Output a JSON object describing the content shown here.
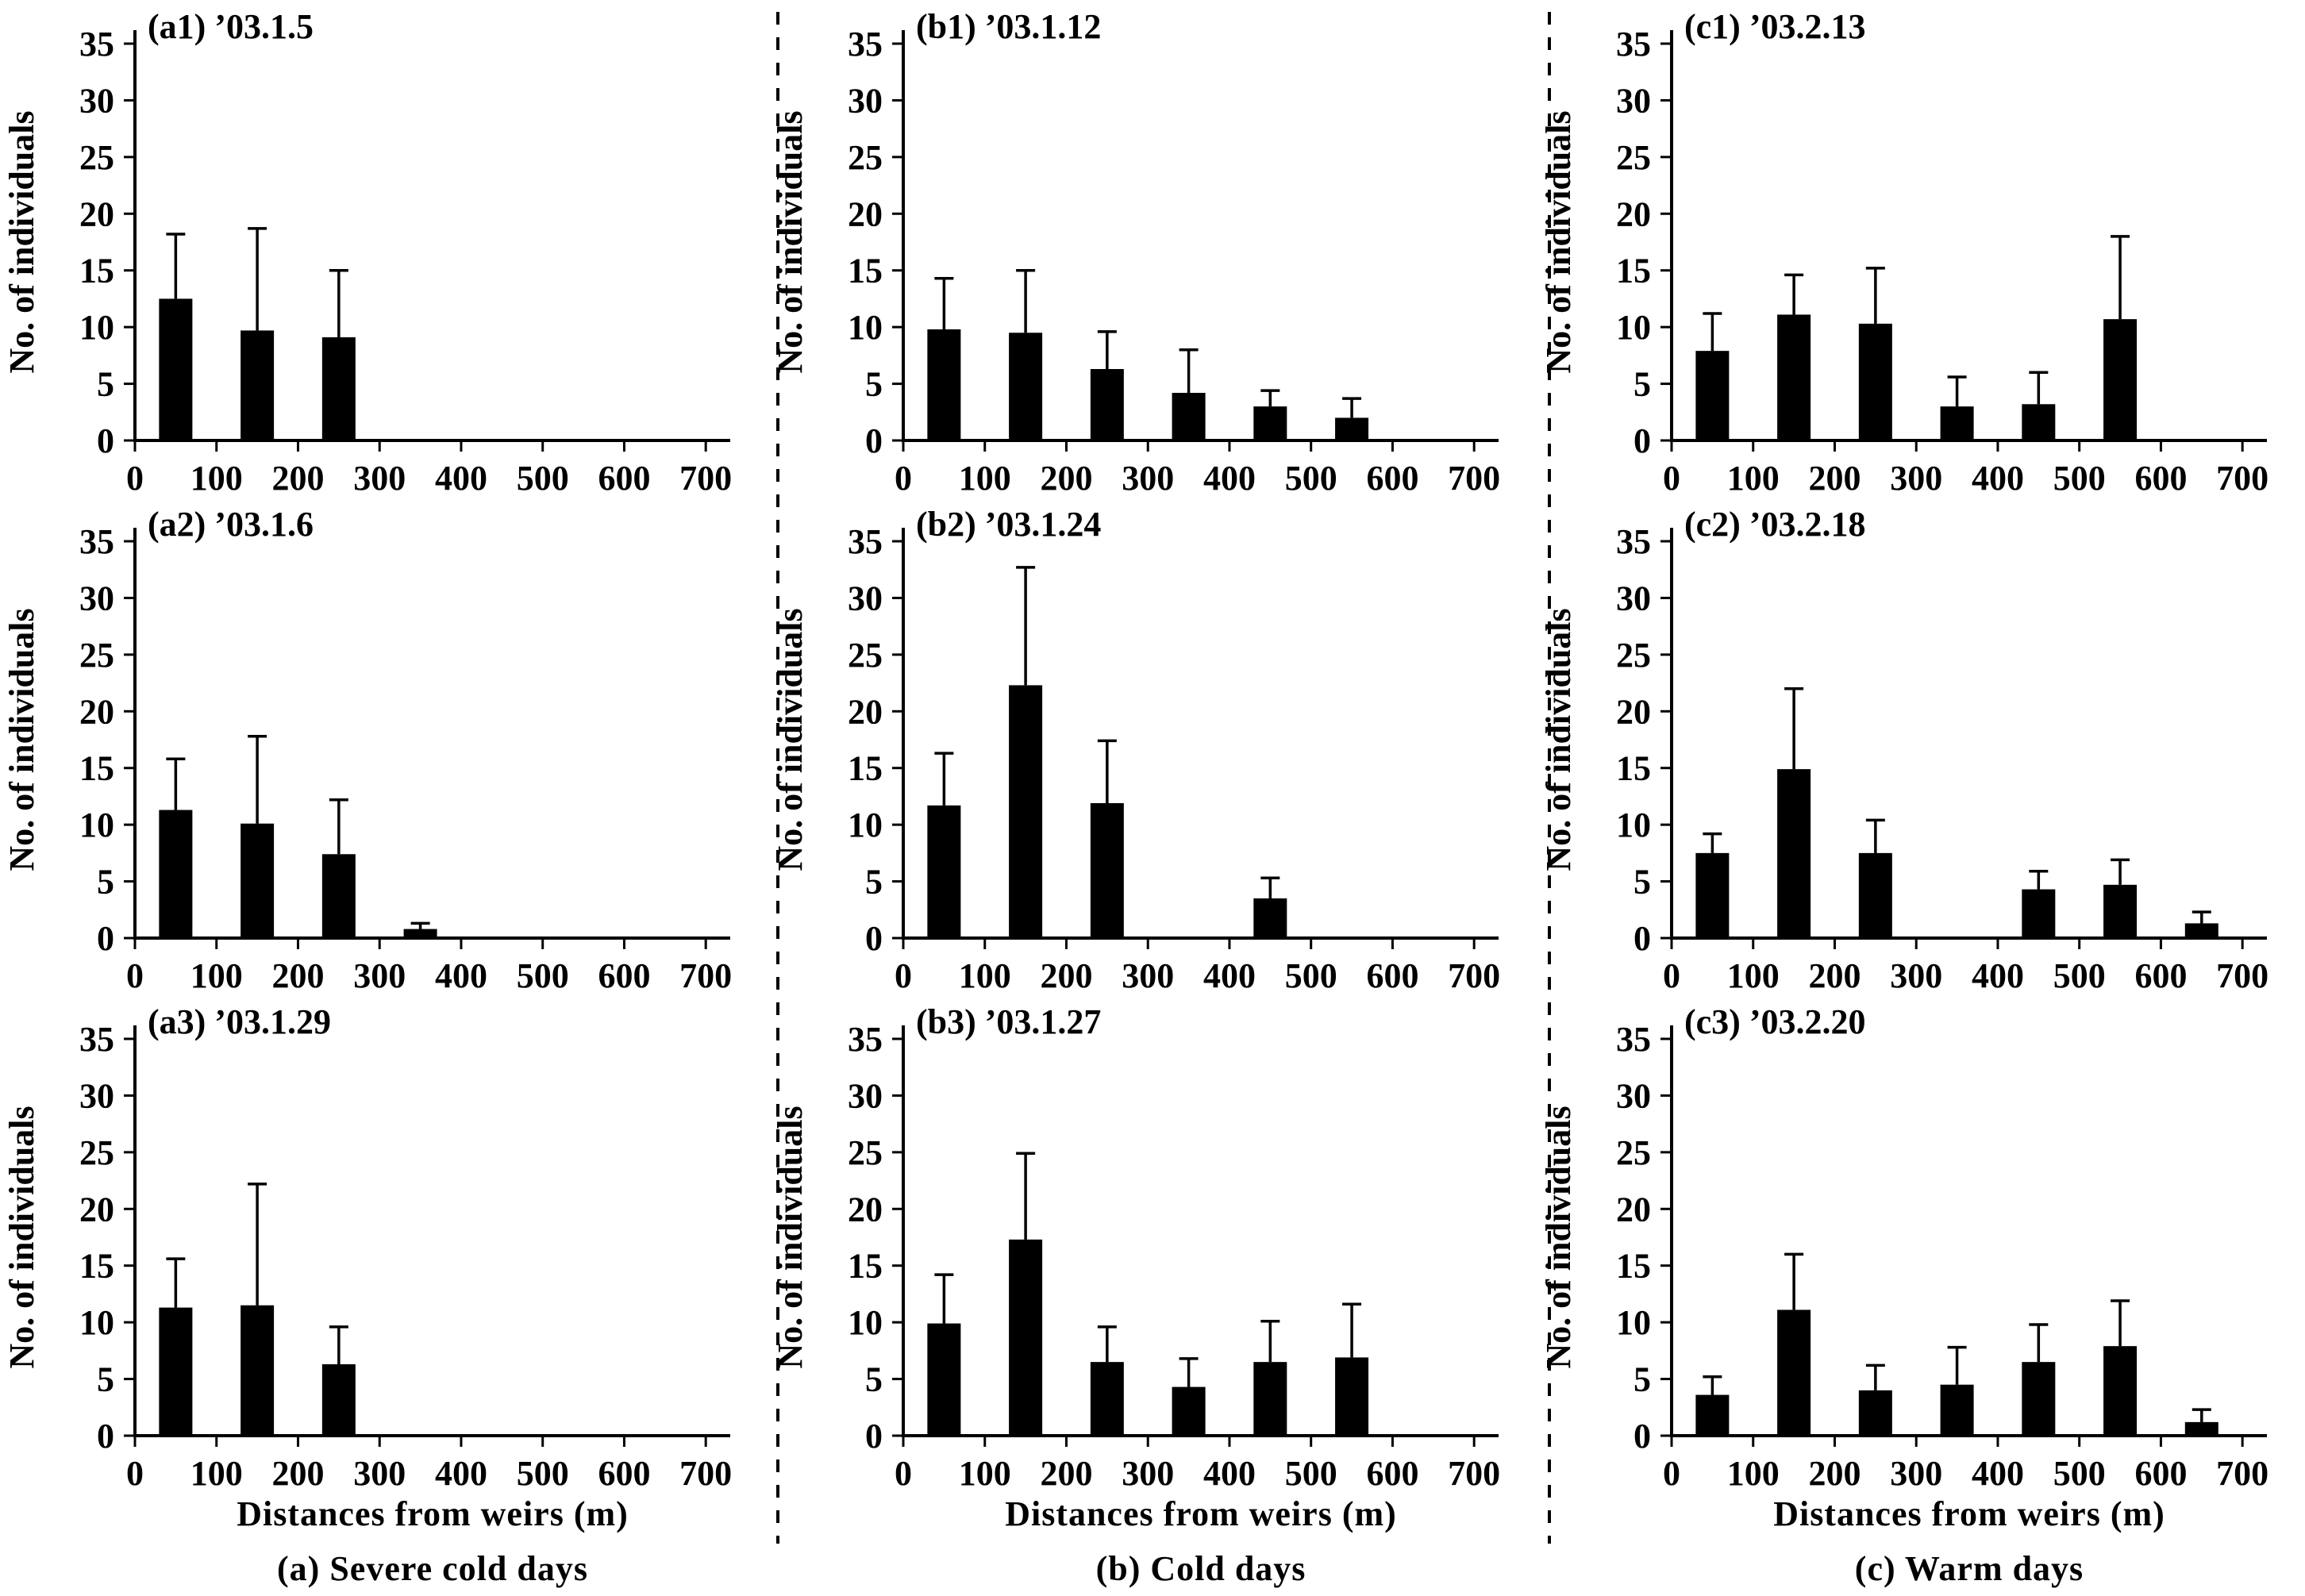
{
  "figure": {
    "ylabel": "No. of individuals",
    "xlabel": "Distances from weirs (m)",
    "bar_color": "#000000",
    "columns": [
      {
        "id": "a",
        "caption": "(a) Severe cold days"
      },
      {
        "id": "b",
        "caption": "(b) Cold days"
      },
      {
        "id": "c",
        "caption": "(c) Warm days"
      }
    ]
  },
  "chart_data": [
    {
      "panel": "a1",
      "column": "a",
      "row": 1,
      "type": "bar",
      "title": "(a1) ’03.1.5",
      "categories": [
        50,
        150,
        250,
        350,
        450,
        550,
        650
      ],
      "values": [
        12.5,
        9.7,
        9.1,
        0,
        0,
        0,
        0
      ],
      "errors_plus": [
        5.7,
        9.0,
        5.9,
        0,
        0,
        0,
        0
      ],
      "xticks": [
        0,
        100,
        200,
        300,
        400,
        500,
        600,
        700
      ],
      "yticks": [
        0,
        5,
        10,
        15,
        20,
        25,
        30,
        35
      ],
      "xlim": [
        0,
        730
      ],
      "ylim": [
        0,
        35
      ],
      "grid": false,
      "legend": "none",
      "ylabel": "No. of individuals",
      "xlabel": ""
    },
    {
      "panel": "a2",
      "column": "a",
      "row": 2,
      "type": "bar",
      "title": "(a2) ’03.1.6",
      "categories": [
        50,
        150,
        250,
        350,
        450,
        550,
        650
      ],
      "values": [
        11.3,
        10.1,
        7.4,
        0.8,
        0,
        0,
        0
      ],
      "errors_plus": [
        4.5,
        7.7,
        4.8,
        0.5,
        0,
        0,
        0
      ],
      "xticks": [
        0,
        100,
        200,
        300,
        400,
        500,
        600,
        700
      ],
      "yticks": [
        0,
        5,
        10,
        15,
        20,
        25,
        30,
        35
      ],
      "xlim": [
        0,
        730
      ],
      "ylim": [
        0,
        35
      ],
      "grid": false,
      "legend": "none",
      "ylabel": "No. of individuals",
      "xlabel": ""
    },
    {
      "panel": "a3",
      "column": "a",
      "row": 3,
      "type": "bar",
      "title": "(a3) ’03.1.29",
      "categories": [
        50,
        150,
        250,
        350,
        450,
        550,
        650
      ],
      "values": [
        11.3,
        11.5,
        6.3,
        0,
        0,
        0,
        0
      ],
      "errors_plus": [
        4.3,
        10.7,
        3.3,
        0,
        0,
        0,
        0
      ],
      "xticks": [
        0,
        100,
        200,
        300,
        400,
        500,
        600,
        700
      ],
      "yticks": [
        0,
        5,
        10,
        15,
        20,
        25,
        30,
        35
      ],
      "xlim": [
        0,
        730
      ],
      "ylim": [
        0,
        35
      ],
      "grid": false,
      "legend": "none",
      "ylabel": "No. of individuals",
      "xlabel": "Distances from weirs (m)"
    },
    {
      "panel": "b1",
      "column": "b",
      "row": 1,
      "type": "bar",
      "title": "(b1) ’03.1.12",
      "categories": [
        50,
        150,
        250,
        350,
        450,
        550,
        650
      ],
      "values": [
        9.8,
        9.5,
        6.3,
        4.2,
        3.0,
        2.0,
        0
      ],
      "errors_plus": [
        4.5,
        5.5,
        3.3,
        3.8,
        1.4,
        1.7,
        0
      ],
      "xticks": [
        0,
        100,
        200,
        300,
        400,
        500,
        600,
        700
      ],
      "yticks": [
        0,
        5,
        10,
        15,
        20,
        25,
        30,
        35
      ],
      "xlim": [
        0,
        730
      ],
      "ylim": [
        0,
        35
      ],
      "grid": false,
      "legend": "none",
      "ylabel": "No. of individuals",
      "xlabel": ""
    },
    {
      "panel": "b2",
      "column": "b",
      "row": 2,
      "type": "bar",
      "title": "(b2) ’03.1.24",
      "categories": [
        50,
        150,
        250,
        350,
        450,
        550,
        650
      ],
      "values": [
        11.7,
        22.3,
        11.9,
        0,
        3.5,
        0,
        0
      ],
      "errors_plus": [
        4.6,
        10.4,
        5.5,
        0,
        1.8,
        0,
        0
      ],
      "xticks": [
        0,
        100,
        200,
        300,
        400,
        500,
        600,
        700
      ],
      "yticks": [
        0,
        5,
        10,
        15,
        20,
        25,
        30,
        35
      ],
      "xlim": [
        0,
        730
      ],
      "ylim": [
        0,
        35
      ],
      "grid": false,
      "legend": "none",
      "ylabel": "No. of individuals",
      "xlabel": ""
    },
    {
      "panel": "b3",
      "column": "b",
      "row": 3,
      "type": "bar",
      "title": "(b3) ’03.1.27",
      "categories": [
        50,
        150,
        250,
        350,
        450,
        550,
        650
      ],
      "values": [
        9.9,
        17.3,
        6.5,
        4.3,
        6.5,
        6.9,
        0
      ],
      "errors_plus": [
        4.3,
        7.6,
        3.1,
        2.5,
        3.6,
        4.7,
        0
      ],
      "xticks": [
        0,
        100,
        200,
        300,
        400,
        500,
        600,
        700
      ],
      "yticks": [
        0,
        5,
        10,
        15,
        20,
        25,
        30,
        35
      ],
      "xlim": [
        0,
        730
      ],
      "ylim": [
        0,
        35
      ],
      "grid": false,
      "legend": "none",
      "ylabel": "No. of individuals",
      "xlabel": "Distances from weirs (m)"
    },
    {
      "panel": "c1",
      "column": "c",
      "row": 1,
      "type": "bar",
      "title": "(c1) ’03.2.13",
      "categories": [
        50,
        150,
        250,
        350,
        450,
        550,
        650
      ],
      "values": [
        7.9,
        11.1,
        10.3,
        3.0,
        3.2,
        10.7,
        0
      ],
      "errors_plus": [
        3.3,
        3.5,
        4.9,
        2.6,
        2.8,
        7.3,
        0
      ],
      "xticks": [
        0,
        100,
        200,
        300,
        400,
        500,
        600,
        700
      ],
      "yticks": [
        0,
        5,
        10,
        15,
        20,
        25,
        30,
        35
      ],
      "xlim": [
        0,
        730
      ],
      "ylim": [
        0,
        35
      ],
      "grid": false,
      "legend": "none",
      "ylabel": "No. of individuals",
      "xlabel": ""
    },
    {
      "panel": "c2",
      "column": "c",
      "row": 2,
      "type": "bar",
      "title": "(c2) ’03.2.18",
      "categories": [
        50,
        150,
        250,
        350,
        450,
        550,
        650
      ],
      "values": [
        7.5,
        14.9,
        7.5,
        0,
        4.3,
        4.7,
        1.3
      ],
      "errors_plus": [
        1.7,
        7.1,
        2.9,
        0,
        1.6,
        2.2,
        1.0
      ],
      "xticks": [
        0,
        100,
        200,
        300,
        400,
        500,
        600,
        700
      ],
      "yticks": [
        0,
        5,
        10,
        15,
        20,
        25,
        30,
        35
      ],
      "xlim": [
        0,
        730
      ],
      "ylim": [
        0,
        35
      ],
      "grid": false,
      "legend": "none",
      "ylabel": "No. of individuals",
      "xlabel": ""
    },
    {
      "panel": "c3",
      "column": "c",
      "row": 3,
      "type": "bar",
      "title": "(c3) ’03.2.20",
      "categories": [
        50,
        150,
        250,
        350,
        450,
        550,
        650
      ],
      "values": [
        3.6,
        11.1,
        4.0,
        4.5,
        6.5,
        7.9,
        1.2
      ],
      "errors_plus": [
        1.6,
        4.9,
        2.2,
        3.3,
        3.3,
        4.0,
        1.1
      ],
      "xticks": [
        0,
        100,
        200,
        300,
        400,
        500,
        600,
        700
      ],
      "yticks": [
        0,
        5,
        10,
        15,
        20,
        25,
        30,
        35
      ],
      "xlim": [
        0,
        730
      ],
      "ylim": [
        0,
        35
      ],
      "grid": false,
      "legend": "none",
      "ylabel": "No. of individuals",
      "xlabel": "Distances from weirs (m)"
    }
  ]
}
